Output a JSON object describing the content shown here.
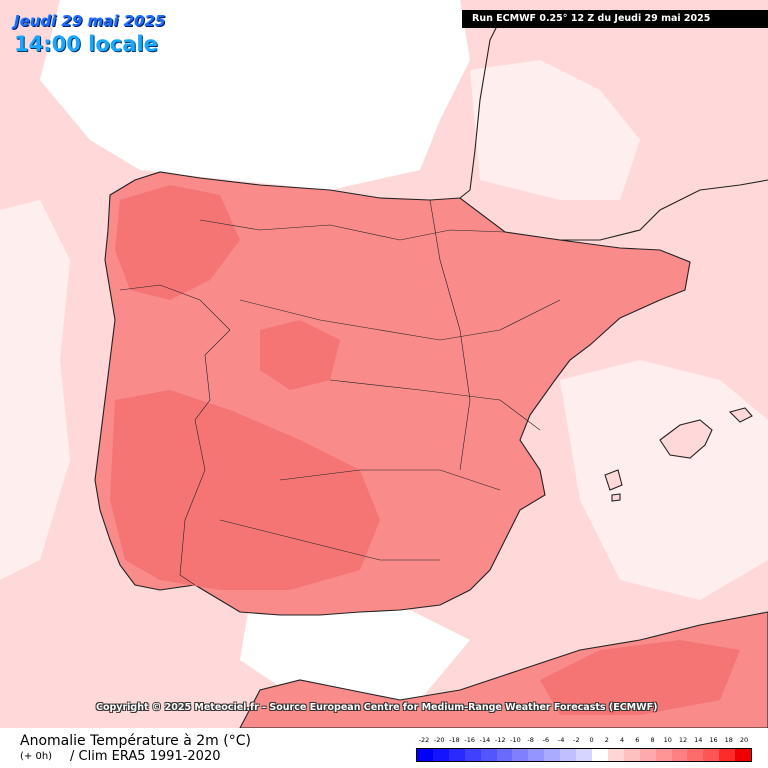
{
  "header": {
    "date": "Jeudi 29 mai 2025",
    "time": "14:00 locale",
    "run": "Run ECMWF 0.25° 12 Z du Jeudi 29 mai 2025"
  },
  "copyright": "Copyright © 2025 Meteociel.fr - Source European Centre for Medium-Range Weather Forecasts (ECMWF)",
  "footer": {
    "title": "Anomalie Température à 2m (°C)",
    "step": "(+ 0h)",
    "clim": "/ Clim ERA5 1991-2020"
  },
  "legend": {
    "labels": [
      "-22",
      "-20",
      "-18",
      "-16",
      "-14",
      "-12",
      "-10",
      "-8",
      "-6",
      "-4",
      "-2",
      "0",
      "2",
      "4",
      "6",
      "8",
      "10",
      "12",
      "14",
      "16",
      "18",
      "20"
    ],
    "colors": [
      "#0000f5",
      "#1414ff",
      "#2a2aff",
      "#4040ff",
      "#5555ff",
      "#6a6aff",
      "#8080ff",
      "#9595ff",
      "#aaaaff",
      "#c0c0ff",
      "#d5d5ff",
      "#ffffff",
      "#ffd5d5",
      "#ffc0c0",
      "#ffaaaa",
      "#ff9595",
      "#ff8080",
      "#ff6a6a",
      "#ff5555",
      "#ff2a2a",
      "#f00000"
    ]
  },
  "map": {
    "colors": {
      "land": "#f98b8b",
      "land_hot": "#f57474",
      "sea": "#ffd9d9",
      "sea_light": "#ffeeee",
      "cold_patch": "#ffffff",
      "border": "#222222"
    }
  }
}
